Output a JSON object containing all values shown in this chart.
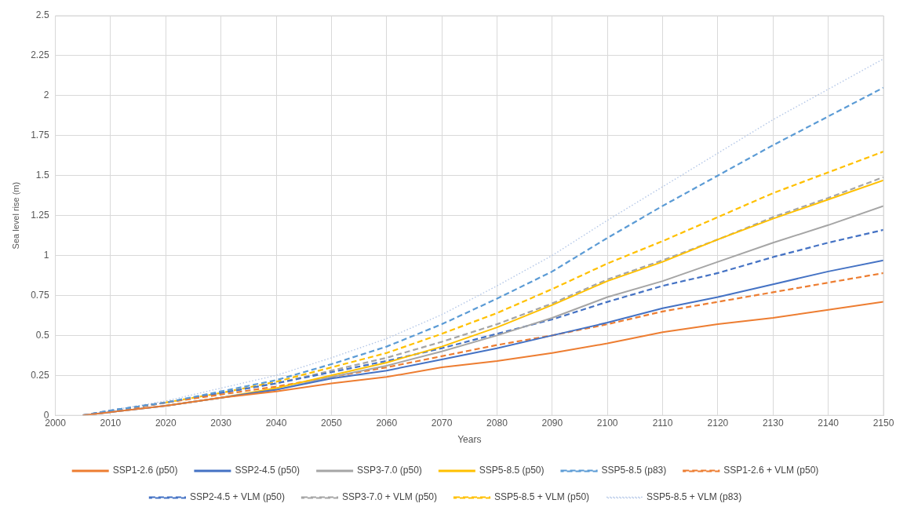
{
  "chart_data": {
    "type": "line",
    "xlabel": "Years",
    "ylabel": "Sea level rise (m)",
    "x": [
      2005,
      2010,
      2020,
      2030,
      2040,
      2050,
      2060,
      2070,
      2080,
      2090,
      2100,
      2110,
      2120,
      2130,
      2140,
      2150
    ],
    "xlim": [
      2000,
      2150
    ],
    "xticks": [
      2000,
      2010,
      2020,
      2030,
      2040,
      2050,
      2060,
      2070,
      2080,
      2090,
      2100,
      2110,
      2120,
      2130,
      2140,
      2150
    ],
    "ylim": [
      0,
      2.5
    ],
    "yticks": [
      0,
      0.25,
      0.5,
      0.75,
      1,
      1.25,
      1.5,
      1.75,
      2,
      2.25,
      2.5
    ],
    "grid": true,
    "legend": "bottom",
    "marker": "none",
    "series": [
      {
        "name": "SSP1-2.6 (p50)",
        "color": "#ed7d31",
        "line_style": "solid",
        "values": [
          0,
          0.02,
          0.06,
          0.11,
          0.15,
          0.2,
          0.24,
          0.3,
          0.34,
          0.39,
          0.45,
          0.52,
          0.57,
          0.61,
          0.66,
          0.71
        ]
      },
      {
        "name": "SSP2-4.5 (p50)",
        "color": "#4472c4",
        "line_style": "solid",
        "values": [
          0,
          0.02,
          0.06,
          0.11,
          0.16,
          0.23,
          0.28,
          0.35,
          0.42,
          0.5,
          0.58,
          0.67,
          0.74,
          0.82,
          0.9,
          0.97
        ]
      },
      {
        "name": "SSP3-7.0 (p50)",
        "color": "#a5a5a5",
        "line_style": "solid",
        "values": [
          0,
          0.02,
          0.06,
          0.11,
          0.16,
          0.24,
          0.31,
          0.4,
          0.5,
          0.61,
          0.74,
          0.84,
          0.96,
          1.08,
          1.19,
          1.31
        ]
      },
      {
        "name": "SSP5-8.5 (p50)",
        "color": "#ffc000",
        "line_style": "solid",
        "values": [
          null,
          null,
          0.06,
          0.11,
          0.17,
          0.25,
          0.33,
          0.43,
          0.55,
          0.69,
          0.84,
          0.96,
          1.1,
          1.23,
          1.35,
          1.47
        ]
      },
      {
        "name": "SSP5-8.5 (p83)",
        "color": "#5b9bd5",
        "line_style": "dashed",
        "values": [
          0,
          0.03,
          0.08,
          0.15,
          0.22,
          0.32,
          0.43,
          0.57,
          0.73,
          0.9,
          1.11,
          1.31,
          1.5,
          1.69,
          1.87,
          2.05
        ]
      },
      {
        "name": "SSP1-2.6 + VLM (p50)",
        "color": "#ed7d31",
        "line_style": "dashed",
        "values": [
          0,
          0.02,
          0.08,
          0.13,
          0.18,
          0.24,
          0.3,
          0.37,
          0.44,
          0.5,
          0.57,
          0.65,
          0.71,
          0.77,
          0.83,
          0.89
        ]
      },
      {
        "name": "SSP2-4.5 + VLM (p50)",
        "color": "#4472c4",
        "line_style": "dashed",
        "values": [
          0,
          0.03,
          0.08,
          0.14,
          0.2,
          0.27,
          0.34,
          0.42,
          0.51,
          0.6,
          0.71,
          0.81,
          0.89,
          0.99,
          1.08,
          1.16
        ]
      },
      {
        "name": "SSP3-7.0 + VLM (p50)",
        "color": "#a5a5a5",
        "line_style": "dashed",
        "values": [
          0,
          0.03,
          0.08,
          0.14,
          0.2,
          0.28,
          0.36,
          0.46,
          0.57,
          0.7,
          0.85,
          0.97,
          1.1,
          1.24,
          1.36,
          1.49
        ]
      },
      {
        "name": "SSP5-8.5 + VLM (p50)",
        "color": "#ffc000",
        "line_style": "dashed",
        "values": [
          null,
          null,
          0.08,
          0.14,
          0.21,
          0.3,
          0.39,
          0.51,
          0.64,
          0.79,
          0.95,
          1.09,
          1.24,
          1.39,
          1.52,
          1.65
        ]
      },
      {
        "name": "SSP5-8.5 + VLM (p83)",
        "color": "#b4c7e7",
        "line_style": "dotted",
        "values": [
          0,
          0.03,
          0.09,
          0.17,
          0.25,
          0.36,
          0.48,
          0.63,
          0.81,
          1,
          1.22,
          1.43,
          1.64,
          1.85,
          2.04,
          2.23
        ]
      }
    ]
  }
}
